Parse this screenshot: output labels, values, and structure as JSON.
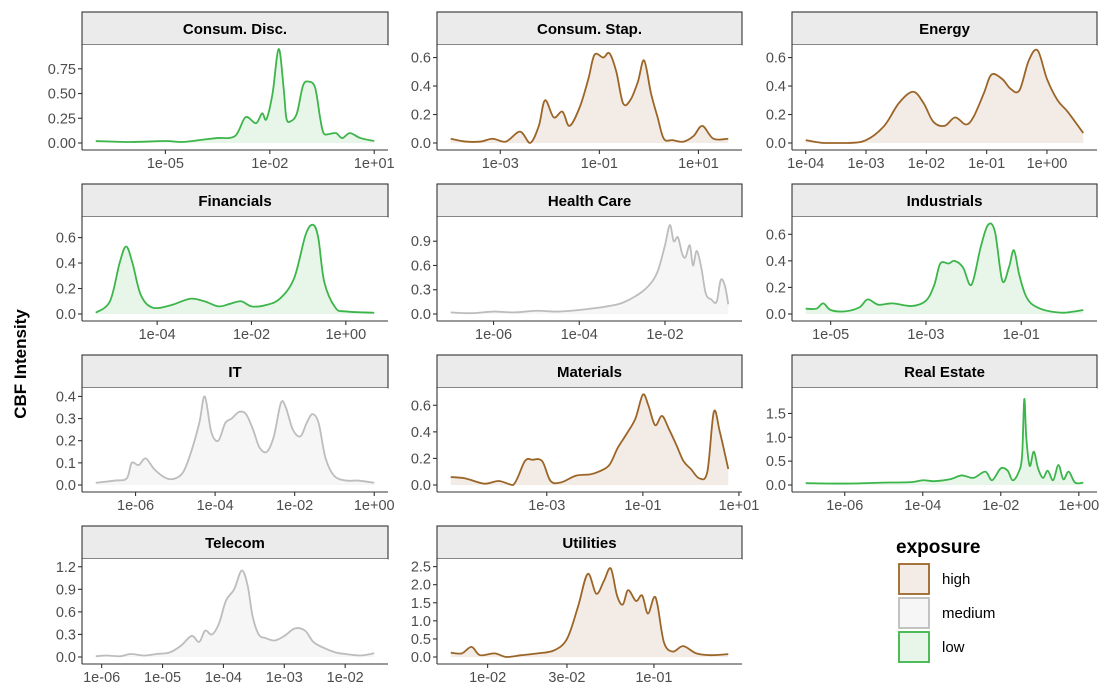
{
  "figure": {
    "ylabel": "CBF Intensity",
    "legend": {
      "title": "exposure",
      "position": "bottom-right",
      "items": [
        {
          "key": "high",
          "label": "high"
        },
        {
          "key": "medium",
          "label": "medium"
        },
        {
          "key": "low",
          "label": "low"
        }
      ]
    },
    "colors": {
      "high": {
        "line": "#9C6528",
        "fill": "#F3ECE6"
      },
      "medium": {
        "line": "#BDBDBD",
        "fill": "#F6F6F6"
      },
      "low": {
        "line": "#3CB54A",
        "fill": "#E8F6EA"
      },
      "strip_bg": "#EBEBEB",
      "strip_border": "#333333",
      "panel_border": "#333333",
      "text": "#000000",
      "tick_text": "#4D4D4D"
    }
  },
  "chart_data": [
    {
      "type": "area",
      "title": "Consum. Disc.",
      "exposure": "low",
      "xscale": "log",
      "xlim": [
        1e-07,
        10
      ],
      "ylim": [
        0,
        0.95
      ],
      "xticks": [
        1e-05,
        0.01,
        10
      ],
      "xtick_labels": [
        "1e-05",
        "1e-02",
        "1e+01"
      ],
      "yticks": [
        0,
        0.25,
        0.5,
        0.75
      ],
      "ytick_labels": [
        "0.00",
        "0.25",
        "0.50",
        "0.75"
      ],
      "x": [
        1e-07,
        1e-06,
        1e-05,
        3e-05,
        0.0001,
        0.0003,
        0.001,
        0.002,
        0.004,
        0.006,
        0.008,
        0.012,
        0.018,
        0.025,
        0.03,
        0.04,
        0.06,
        0.09,
        0.13,
        0.2,
        0.28,
        0.35,
        0.5,
        0.8,
        1.2,
        2,
        4,
        10
      ],
      "y": [
        0.02,
        0.01,
        0.02,
        0.01,
        0.03,
        0.05,
        0.07,
        0.26,
        0.2,
        0.3,
        0.24,
        0.5,
        0.95,
        0.55,
        0.25,
        0.22,
        0.3,
        0.58,
        0.62,
        0.56,
        0.25,
        0.1,
        0.09,
        0.1,
        0.05,
        0.1,
        0.05,
        0.02
      ]
    },
    {
      "type": "area",
      "title": "Consum. Stap.",
      "exposure": "high",
      "xscale": "log",
      "xlim": [
        0.0001,
        40
      ],
      "ylim": [
        0,
        0.66
      ],
      "xticks": [
        0.001,
        0.1,
        10
      ],
      "xtick_labels": [
        "1e-03",
        "1e-01",
        "1e+01"
      ],
      "yticks": [
        0,
        0.2,
        0.4,
        0.6
      ],
      "ytick_labels": [
        "0.0",
        "0.2",
        "0.4",
        "0.6"
      ],
      "x": [
        0.0001,
        0.0002,
        0.0004,
        0.0007,
        0.0013,
        0.0025,
        0.004,
        0.006,
        0.008,
        0.012,
        0.018,
        0.025,
        0.04,
        0.06,
        0.08,
        0.12,
        0.16,
        0.22,
        0.3,
        0.42,
        0.6,
        0.8,
        1.1,
        1.5,
        2,
        3,
        5,
        8,
        12,
        20,
        40
      ],
      "y": [
        0.03,
        0.01,
        0.01,
        0.03,
        0.01,
        0.08,
        0.0,
        0.12,
        0.3,
        0.18,
        0.22,
        0.12,
        0.25,
        0.45,
        0.62,
        0.6,
        0.63,
        0.5,
        0.28,
        0.3,
        0.43,
        0.58,
        0.35,
        0.18,
        0.03,
        0.02,
        0.01,
        0.05,
        0.12,
        0.03,
        0.03
      ]
    },
    {
      "type": "area",
      "title": "Energy",
      "exposure": "high",
      "xscale": "log",
      "xlim": [
        0.0001,
        4
      ],
      "ylim": [
        0,
        0.66
      ],
      "xticks": [
        0.0001,
        0.001,
        0.01,
        0.1,
        1
      ],
      "xtick_labels": [
        "1e-04",
        "1e-03",
        "1e-02",
        "1e-01",
        "1e+00"
      ],
      "yticks": [
        0,
        0.2,
        0.4,
        0.6
      ],
      "ytick_labels": [
        "0.0",
        "0.2",
        "0.4",
        "0.6"
      ],
      "x": [
        0.0001,
        0.0002,
        0.0005,
        0.001,
        0.002,
        0.0035,
        0.006,
        0.009,
        0.013,
        0.02,
        0.03,
        0.045,
        0.06,
        0.09,
        0.12,
        0.18,
        0.25,
        0.35,
        0.5,
        0.7,
        1,
        1.5,
        2.2,
        4
      ],
      "y": [
        0.02,
        0.0,
        0.0,
        0.02,
        0.12,
        0.28,
        0.36,
        0.28,
        0.15,
        0.12,
        0.18,
        0.13,
        0.18,
        0.35,
        0.48,
        0.45,
        0.38,
        0.37,
        0.58,
        0.65,
        0.45,
        0.3,
        0.22,
        0.07
      ]
    },
    {
      "type": "area",
      "title": "Financials",
      "exposure": "low",
      "xscale": "log",
      "xlim": [
        5e-06,
        4
      ],
      "ylim": [
        0,
        0.73
      ],
      "xticks": [
        0.0001,
        0.01,
        1
      ],
      "xtick_labels": [
        "1e-04",
        "1e-02",
        "1e+00"
      ],
      "yticks": [
        0,
        0.2,
        0.4,
        0.6
      ],
      "ytick_labels": [
        "0.0",
        "0.2",
        "0.4",
        "0.6"
      ],
      "x": [
        5e-06,
        1e-05,
        1.6e-05,
        2.2e-05,
        3e-05,
        4.5e-05,
        8e-05,
        0.0002,
        0.0005,
        0.001,
        0.002,
        0.0035,
        0.006,
        0.01,
        0.02,
        0.04,
        0.08,
        0.14,
        0.2,
        0.26,
        0.35,
        0.6,
        1,
        4
      ],
      "y": [
        0.01,
        0.1,
        0.4,
        0.53,
        0.4,
        0.15,
        0.05,
        0.07,
        0.12,
        0.1,
        0.06,
        0.08,
        0.1,
        0.06,
        0.07,
        0.12,
        0.28,
        0.62,
        0.7,
        0.6,
        0.25,
        0.05,
        0.02,
        0.01
      ]
    },
    {
      "type": "area",
      "title": "Health Care",
      "exposure": "medium",
      "xscale": "log",
      "xlim": [
        1e-07,
        0.3
      ],
      "ylim": [
        0,
        1.15
      ],
      "xticks": [
        1e-06,
        0.0001,
        0.01
      ],
      "xtick_labels": [
        "1e-06",
        "1e-04",
        "1e-02"
      ],
      "yticks": [
        0,
        0.3,
        0.6,
        0.9
      ],
      "ytick_labels": [
        "0.0",
        "0.3",
        "0.6",
        "0.9"
      ],
      "x": [
        1e-07,
        3e-07,
        1e-06,
        3e-06,
        1e-05,
        3e-05,
        0.0001,
        0.0003,
        0.0008,
        0.0015,
        0.003,
        0.005,
        0.007,
        0.01,
        0.013,
        0.016,
        0.02,
        0.025,
        0.03,
        0.038,
        0.045,
        0.055,
        0.07,
        0.09,
        0.12,
        0.16,
        0.2,
        0.25,
        0.3
      ],
      "y": [
        0.02,
        0.01,
        0.03,
        0.02,
        0.04,
        0.03,
        0.05,
        0.08,
        0.12,
        0.18,
        0.28,
        0.4,
        0.55,
        0.85,
        1.1,
        0.9,
        0.95,
        0.75,
        0.7,
        0.85,
        0.6,
        0.78,
        0.58,
        0.25,
        0.18,
        0.15,
        0.42,
        0.35,
        0.12
      ]
    },
    {
      "type": "area",
      "title": "Industrials",
      "exposure": "low",
      "xscale": "log",
      "xlim": [
        3e-06,
        2
      ],
      "ylim": [
        0,
        0.7
      ],
      "xticks": [
        1e-05,
        0.001,
        0.1
      ],
      "xtick_labels": [
        "1e-05",
        "1e-03",
        "1e-01"
      ],
      "yticks": [
        0,
        0.2,
        0.4,
        0.6
      ],
      "ytick_labels": [
        "0.0",
        "0.2",
        "0.4",
        "0.6"
      ],
      "x": [
        3e-06,
        5e-06,
        7e-06,
        1e-05,
        2e-05,
        4e-05,
        6e-05,
        0.0001,
        0.0002,
        0.0005,
        0.001,
        0.0015,
        0.002,
        0.003,
        0.004,
        0.006,
        0.009,
        0.014,
        0.02,
        0.028,
        0.04,
        0.055,
        0.07,
        0.09,
        0.12,
        0.16,
        0.25,
        0.4,
        0.8,
        2
      ],
      "y": [
        0.04,
        0.04,
        0.08,
        0.03,
        0.02,
        0.05,
        0.11,
        0.07,
        0.08,
        0.06,
        0.1,
        0.22,
        0.38,
        0.38,
        0.4,
        0.35,
        0.22,
        0.5,
        0.67,
        0.62,
        0.25,
        0.35,
        0.48,
        0.3,
        0.15,
        0.08,
        0.04,
        0.02,
        0.01,
        0.03
      ]
    },
    {
      "type": "area",
      "title": "IT",
      "exposure": "medium",
      "xscale": "log",
      "xlim": [
        1e-07,
        1
      ],
      "ylim": [
        0,
        0.42
      ],
      "xticks": [
        1e-06,
        0.0001,
        0.01,
        1
      ],
      "xtick_labels": [
        "1e-06",
        "1e-04",
        "1e-02",
        "1e+00"
      ],
      "yticks": [
        0,
        0.1,
        0.2,
        0.3,
        0.4
      ],
      "ytick_labels": [
        "0.0",
        "0.1",
        "0.2",
        "0.3",
        "0.4"
      ],
      "x": [
        1e-07,
        3e-07,
        6e-07,
        8e-07,
        1.2e-06,
        1.8e-06,
        3e-06,
        6e-06,
        1e-05,
        1.6e-05,
        2.5e-05,
        4e-05,
        5.5e-05,
        8e-05,
        0.00012,
        0.00018,
        0.00026,
        0.0004,
        0.0006,
        0.0009,
        0.0013,
        0.002,
        0.003,
        0.0045,
        0.006,
        0.009,
        0.014,
        0.02,
        0.028,
        0.04,
        0.06,
        0.1,
        0.2,
        0.4,
        1
      ],
      "y": [
        0.01,
        0.02,
        0.03,
        0.1,
        0.09,
        0.12,
        0.07,
        0.03,
        0.03,
        0.06,
        0.15,
        0.28,
        0.4,
        0.24,
        0.2,
        0.28,
        0.3,
        0.33,
        0.32,
        0.25,
        0.17,
        0.15,
        0.22,
        0.37,
        0.35,
        0.25,
        0.22,
        0.28,
        0.32,
        0.28,
        0.12,
        0.04,
        0.02,
        0.02,
        0.01
      ]
    },
    {
      "type": "area",
      "title": "Materials",
      "exposure": "high",
      "xscale": "log",
      "xlim": [
        1e-05,
        6
      ],
      "ylim": [
        0,
        0.7
      ],
      "xticks": [
        0.001,
        0.1,
        10
      ],
      "xtick_labels": [
        "1e-03",
        "1e-01",
        "1e+01"
      ],
      "yticks": [
        0,
        0.2,
        0.4,
        0.6
      ],
      "ytick_labels": [
        "0.0",
        "0.2",
        "0.4",
        "0.6"
      ],
      "x": [
        1e-05,
        2e-05,
        5e-05,
        0.0001,
        0.0002,
        0.00035,
        0.0005,
        0.0008,
        0.0012,
        0.002,
        0.004,
        0.008,
        0.012,
        0.02,
        0.03,
        0.045,
        0.07,
        0.1,
        0.13,
        0.18,
        0.25,
        0.35,
        0.5,
        0.7,
        1,
        1.5,
        2.2,
        3,
        4,
        6
      ],
      "y": [
        0.06,
        0.05,
        0.01,
        0.03,
        0.0,
        0.18,
        0.19,
        0.18,
        0.03,
        0.02,
        0.07,
        0.08,
        0.1,
        0.15,
        0.28,
        0.38,
        0.5,
        0.68,
        0.6,
        0.45,
        0.52,
        0.42,
        0.3,
        0.18,
        0.12,
        0.05,
        0.1,
        0.55,
        0.4,
        0.12
      ]
    },
    {
      "type": "area",
      "title": "Real Estate",
      "exposure": "low",
      "xscale": "log",
      "xlim": [
        1e-07,
        1.3
      ],
      "ylim": [
        0,
        1.95
      ],
      "xticks": [
        1e-06,
        0.0001,
        0.01,
        1
      ],
      "xtick_labels": [
        "1e-06",
        "1e-04",
        "1e-02",
        "1e+00"
      ],
      "yticks": [
        0,
        0.5,
        1.0,
        1.5
      ],
      "ytick_labels": [
        "0.0",
        "0.5",
        "1.0",
        "1.5"
      ],
      "x": [
        1e-07,
        1e-06,
        1e-05,
        5e-05,
        0.0001,
        0.0002,
        0.0005,
        0.001,
        0.002,
        0.004,
        0.006,
        0.01,
        0.015,
        0.02,
        0.028,
        0.035,
        0.04,
        0.045,
        0.055,
        0.07,
        0.09,
        0.12,
        0.16,
        0.22,
        0.3,
        0.4,
        0.55,
        0.8,
        1.3
      ],
      "y": [
        0.04,
        0.03,
        0.05,
        0.06,
        0.1,
        0.08,
        0.12,
        0.2,
        0.15,
        0.28,
        0.1,
        0.35,
        0.3,
        0.1,
        0.25,
        0.6,
        1.8,
        1.0,
        0.4,
        0.7,
        0.35,
        0.15,
        0.3,
        0.1,
        0.42,
        0.12,
        0.28,
        0.05,
        0.05
      ]
    },
    {
      "type": "area",
      "title": "Telecom",
      "exposure": "medium",
      "xscale": "log",
      "xlim": [
        8e-07,
        0.03
      ],
      "ylim": [
        0,
        1.25
      ],
      "xticks": [
        1e-06,
        1e-05,
        0.0001,
        0.001,
        0.01
      ],
      "xtick_labels": [
        "1e-06",
        "1e-05",
        "1e-04",
        "1e-03",
        "1e-02"
      ],
      "yticks": [
        0,
        0.3,
        0.6,
        0.9,
        1.2
      ],
      "ytick_labels": [
        "0.0",
        "0.3",
        "0.6",
        "0.9",
        "1.2"
      ],
      "x": [
        8e-07,
        1.2e-06,
        2e-06,
        3e-06,
        5e-06,
        8e-06,
        1.3e-05,
        2e-05,
        3e-05,
        4e-05,
        5e-05,
        6.5e-05,
        8.5e-05,
        0.00011,
        0.00015,
        0.0002,
        0.00025,
        0.0003,
        0.00038,
        0.0005,
        0.0007,
        0.001,
        0.0015,
        0.0022,
        0.003,
        0.0045,
        0.007,
        0.01,
        0.018,
        0.03
      ],
      "y": [
        0.01,
        0.02,
        0.01,
        0.04,
        0.02,
        0.04,
        0.06,
        0.15,
        0.28,
        0.2,
        0.35,
        0.3,
        0.45,
        0.75,
        0.9,
        1.15,
        0.95,
        0.55,
        0.3,
        0.25,
        0.22,
        0.28,
        0.38,
        0.35,
        0.2,
        0.12,
        0.06,
        0.04,
        0.02,
        0.05
      ]
    },
    {
      "type": "area",
      "title": "Utilities",
      "exposure": "high",
      "xscale": "log",
      "xlim": [
        0.006,
        0.28
      ],
      "ylim": [
        0,
        2.6
      ],
      "xticks": [
        0.01,
        0.03,
        0.1
      ],
      "xtick_labels": [
        "1e-02",
        "3e-02",
        "1e-01"
      ],
      "yticks": [
        0,
        0.5,
        1.0,
        1.5,
        2.0,
        2.5
      ],
      "ytick_labels": [
        "0.0",
        "0.5",
        "1.0",
        "1.5",
        "2.0",
        "2.5"
      ],
      "x": [
        0.006,
        0.007,
        0.008,
        0.009,
        0.011,
        0.013,
        0.016,
        0.02,
        0.025,
        0.03,
        0.035,
        0.04,
        0.045,
        0.05,
        0.055,
        0.06,
        0.065,
        0.07,
        0.078,
        0.085,
        0.092,
        0.1,
        0.105,
        0.115,
        0.13,
        0.15,
        0.18,
        0.22,
        0.28
      ],
      "y": [
        0.12,
        0.1,
        0.28,
        0.05,
        0.1,
        0.0,
        0.05,
        0.1,
        0.18,
        0.5,
        1.4,
        2.3,
        1.75,
        2.1,
        2.45,
        1.7,
        1.45,
        1.85,
        1.55,
        1.7,
        1.2,
        1.65,
        1.45,
        0.4,
        0.15,
        0.3,
        0.1,
        0.05,
        0.08
      ]
    }
  ]
}
